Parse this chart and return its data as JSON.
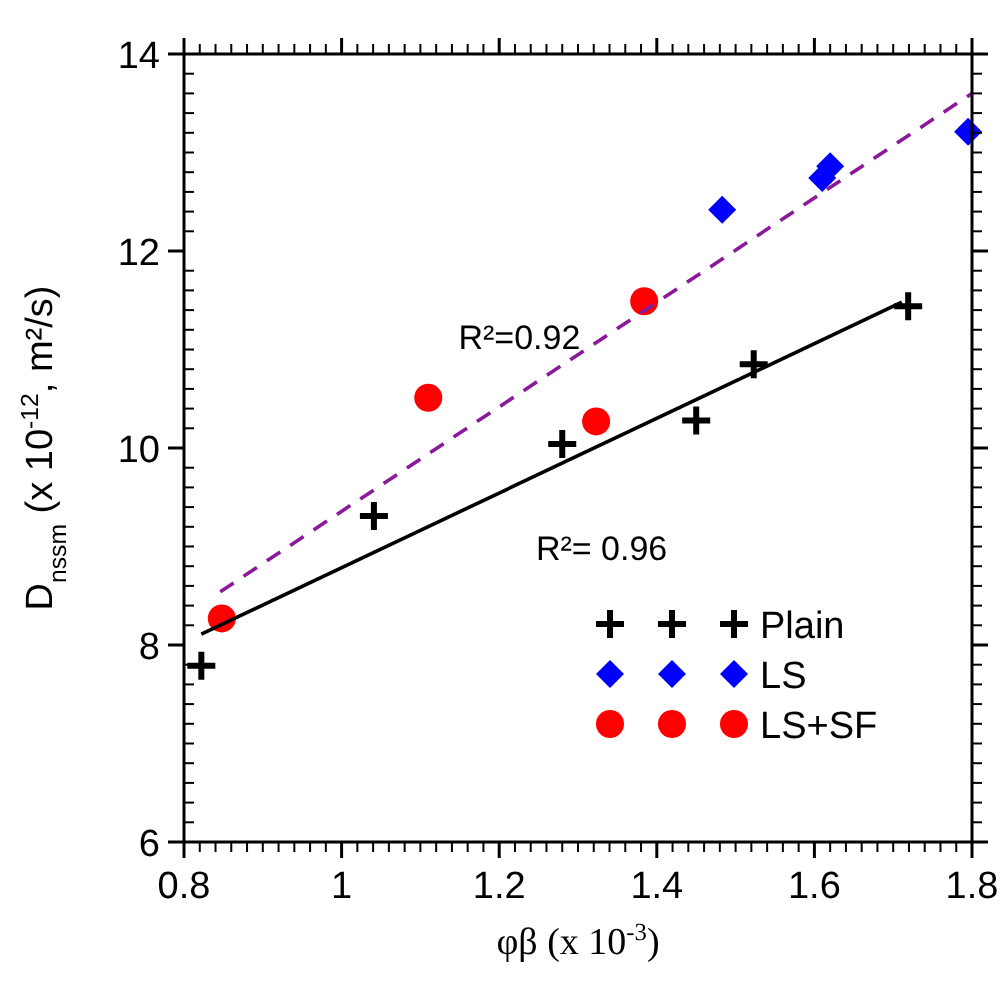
{
  "chart_data": {
    "type": "scatter",
    "xlabel": "φβ (x 10$^{-3}$)",
    "ylabel": "D$_{nssm}$ (x 10$^{-12}$, m²/s)",
    "xlim": [
      0.8,
      1.8
    ],
    "xticks": [
      0.8,
      1,
      1.2,
      1.4,
      1.6,
      1.8
    ],
    "ylim": [
      6,
      14
    ],
    "yticks": [
      6,
      8,
      10,
      12,
      14
    ],
    "grid": false,
    "legend": "bottom right",
    "series": [
      {
        "name": "Plain",
        "marker": "cross",
        "color": "#000000",
        "x": [
          0.822,
          1.041,
          1.28,
          1.45,
          1.523,
          1.719
        ],
        "values": [
          7.79,
          9.31,
          10.04,
          10.28,
          10.85,
          11.44
        ]
      },
      {
        "name": "LS",
        "marker": "diamond",
        "color": "#0000ff",
        "x": [
          1.483,
          1.61,
          1.62,
          1.795
        ],
        "values": [
          12.42,
          12.74,
          12.86,
          13.21
        ]
      },
      {
        "name": "LS+SF",
        "marker": "circle",
        "color": "#ff0000",
        "x": [
          0.848,
          1.11,
          1.323,
          1.384
        ],
        "values": [
          8.27,
          10.51,
          10.27,
          11.49
        ]
      },
      {
        "type": "line",
        "line_style": "dashed",
        "color": "#8b1a9b",
        "x": [
          0.846,
          1.8
        ],
        "values": [
          8.54,
          13.6
        ]
      },
      {
        "type": "line",
        "line_style": "solid",
        "color": "#000000",
        "x": [
          0.822,
          1.711
        ],
        "values": [
          8.11,
          11.48
        ]
      }
    ],
    "annotations": [
      "R²=0.92",
      "R²= 0.96"
    ]
  }
}
